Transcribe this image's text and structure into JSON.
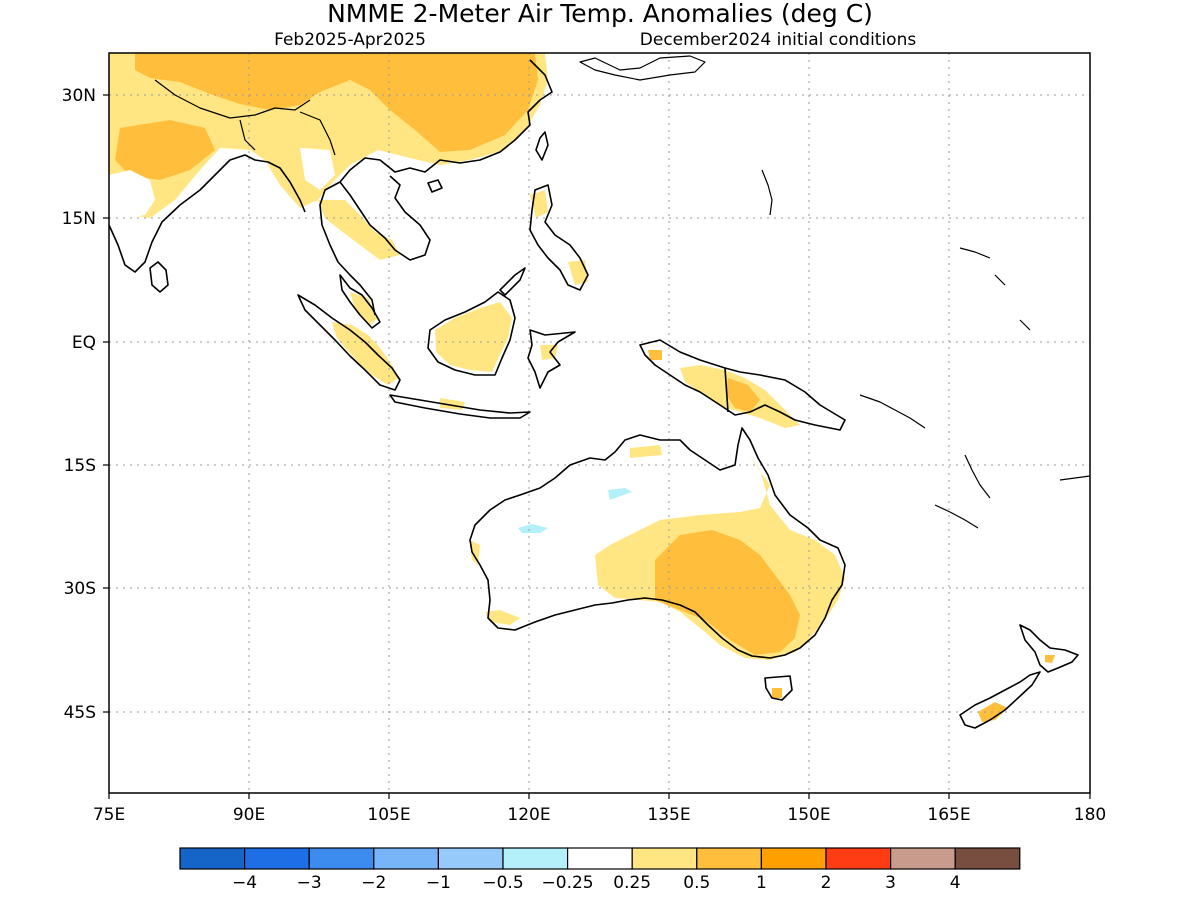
{
  "title": "NMME 2-Meter Air Temp. Anomalies (deg C)",
  "subtitle_left": "Feb2025-Apr2025",
  "subtitle_right": "December2024 initial conditions",
  "map": {
    "lon_range": [
      75,
      180
    ],
    "lat_range": [
      -55,
      35
    ],
    "grid": "dotted",
    "x_tick_labels": [
      "75E",
      "90E",
      "105E",
      "120E",
      "135E",
      "150E",
      "165E",
      "180"
    ],
    "y_tick_labels": [
      "30N",
      "15N",
      "EQ",
      "15S",
      "30S",
      "45S"
    ]
  },
  "colorbar": {
    "colors": [
      "#1565c8",
      "#1e6ee6",
      "#3c8cf0",
      "#78b4f8",
      "#96cafa",
      "#b4f0fa",
      "#ffffff",
      "#ffe682",
      "#ffbe3c",
      "#ffa000",
      "#ff3c14",
      "#c89b8c",
      "#784e40"
    ],
    "labels": [
      "−4",
      "−3",
      "−2",
      "−1",
      "−0.5",
      "−0.25",
      "0.25",
      "0.5",
      "1",
      "2",
      "3",
      "4"
    ]
  },
  "anomaly_regions": [
    {
      "name": "china-warm",
      "category": "0.5"
    },
    {
      "name": "china-core-warm",
      "category": "1"
    },
    {
      "name": "india-warm",
      "category": "0.5"
    },
    {
      "name": "borneo-warm",
      "category": "0.5"
    },
    {
      "name": "sumatra-warm",
      "category": "0.5"
    },
    {
      "name": "new-guinea-warm",
      "category": "0.5"
    },
    {
      "name": "australia-warm",
      "category": "0.5"
    },
    {
      "name": "australia-core-warm",
      "category": "1"
    },
    {
      "name": "australia-cool",
      "category": "-0.25"
    },
    {
      "name": "new-zealand-warm",
      "category": "1"
    }
  ]
}
